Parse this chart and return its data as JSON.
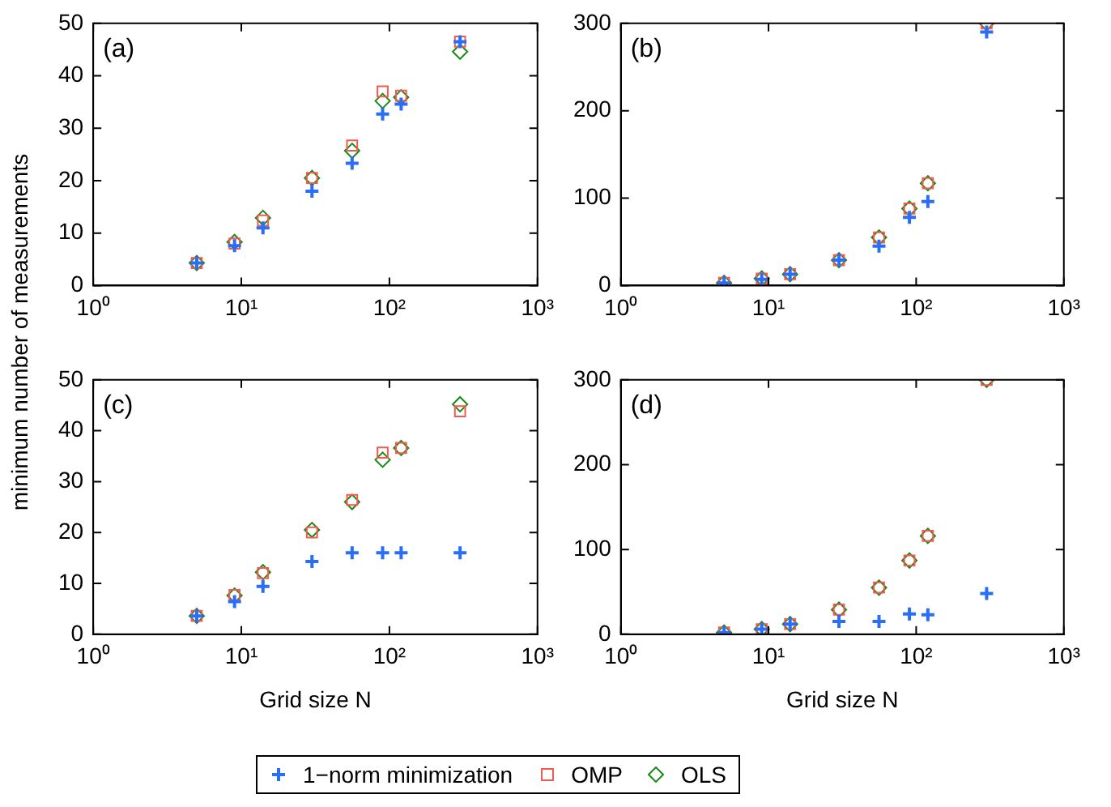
{
  "chart_data": [
    {
      "type": "scatter",
      "annotations": [
        "(a)"
      ],
      "log": "x",
      "xlim": [
        1,
        1000
      ],
      "xticks": [
        {
          "value": 1,
          "label": "10⁰"
        },
        {
          "value": 10,
          "label": "10¹"
        },
        {
          "value": 100,
          "label": "10²"
        },
        {
          "value": 1000,
          "label": "10³"
        }
      ],
      "ylim": [
        0,
        50
      ],
      "yticks": [
        0,
        10,
        20,
        30,
        40,
        50
      ],
      "grid": false,
      "x": [
        5,
        9,
        14,
        30,
        56,
        90,
        120,
        300
      ],
      "series": [
        {
          "color": "#2a6ef5",
          "marker": "cross",
          "values": [
            4.3,
            7.6,
            11,
            18,
            23.3,
            32.7,
            34.6,
            46.5
          ]
        },
        {
          "color": "#f05a50",
          "marker": "square",
          "values": [
            4.3,
            8,
            12.4,
            20.5,
            26.7,
            37,
            36.2,
            46.5
          ]
        },
        {
          "color": "#1a8a1a",
          "marker": "diamond",
          "values": [
            4.3,
            8.3,
            12.9,
            20.5,
            25.7,
            35.2,
            35.9,
            44.6
          ]
        }
      ]
    },
    {
      "type": "scatter",
      "annotations": [
        "(b)"
      ],
      "log": "x",
      "xlim": [
        1,
        1000
      ],
      "xticks": [
        {
          "value": 1,
          "label": "10⁰"
        },
        {
          "value": 10,
          "label": "10¹"
        },
        {
          "value": 100,
          "label": "10²"
        },
        {
          "value": 1000,
          "label": "10³"
        }
      ],
      "ylim": [
        0,
        300
      ],
      "yticks": [
        0,
        100,
        200,
        300
      ],
      "grid": false,
      "x": [
        5,
        9,
        14,
        30,
        56,
        90,
        120,
        300
      ],
      "series": [
        {
          "color": "#2a6ef5",
          "marker": "cross",
          "values": [
            3,
            7,
            13,
            29,
            45,
            78,
            96,
            290
          ]
        },
        {
          "color": "#f05a50",
          "marker": "square",
          "values": [
            3,
            8,
            13,
            29,
            55,
            88,
            117,
            300
          ]
        },
        {
          "color": "#1a8a1a",
          "marker": "diamond",
          "values": [
            3,
            8,
            13,
            29,
            55,
            88,
            117,
            300
          ]
        }
      ]
    },
    {
      "type": "scatter",
      "annotations": [
        "(c)"
      ],
      "xlabel": "Grid size N",
      "ylabel": "minimum number of measurements",
      "legend": "bottom",
      "log": "x",
      "xlim": [
        1,
        1000
      ],
      "xticks": [
        {
          "value": 1,
          "label": "10⁰"
        },
        {
          "value": 10,
          "label": "10¹"
        },
        {
          "value": 100,
          "label": "10²"
        },
        {
          "value": 1000,
          "label": "10³"
        }
      ],
      "ylim": [
        0,
        50
      ],
      "yticks": [
        0,
        10,
        20,
        30,
        40,
        50
      ],
      "grid": false,
      "x": [
        5,
        9,
        14,
        30,
        56,
        90,
        120,
        300
      ],
      "series": [
        {
          "name": "1−norm minimization",
          "color": "#2a6ef5",
          "marker": "cross",
          "values": [
            3.6,
            6.4,
            9.4,
            14.3,
            16,
            16,
            16,
            16
          ]
        },
        {
          "name": "OMP",
          "color": "#f05a50",
          "marker": "square",
          "values": [
            3.6,
            7.7,
            12,
            20,
            26.4,
            35.7,
            36.6,
            43.8
          ]
        },
        {
          "name": "OLS",
          "color": "#1a8a1a",
          "marker": "diamond",
          "values": [
            3.6,
            7.6,
            12.2,
            20.5,
            26,
            34.3,
            36.6,
            45.2
          ]
        }
      ]
    },
    {
      "type": "scatter",
      "annotations": [
        "(d)"
      ],
      "xlabel": "Grid size N",
      "log": "x",
      "xlim": [
        1,
        1000
      ],
      "xticks": [
        {
          "value": 1,
          "label": "10⁰"
        },
        {
          "value": 10,
          "label": "10¹"
        },
        {
          "value": 100,
          "label": "10²"
        },
        {
          "value": 1000,
          "label": "10³"
        }
      ],
      "ylim": [
        0,
        300
      ],
      "yticks": [
        0,
        100,
        200,
        300
      ],
      "grid": false,
      "x": [
        5,
        9,
        14,
        30,
        56,
        90,
        120,
        300
      ],
      "series": [
        {
          "color": "#2a6ef5",
          "marker": "cross",
          "values": [
            2,
            6,
            12,
            15,
            15,
            24,
            23,
            48
          ]
        },
        {
          "color": "#f05a50",
          "marker": "square",
          "values": [
            2,
            6,
            12,
            29,
            55,
            87,
            116,
            300
          ]
        },
        {
          "color": "#1a8a1a",
          "marker": "diamond",
          "values": [
            2,
            6,
            12,
            29,
            55,
            87,
            116,
            300
          ]
        }
      ]
    }
  ]
}
